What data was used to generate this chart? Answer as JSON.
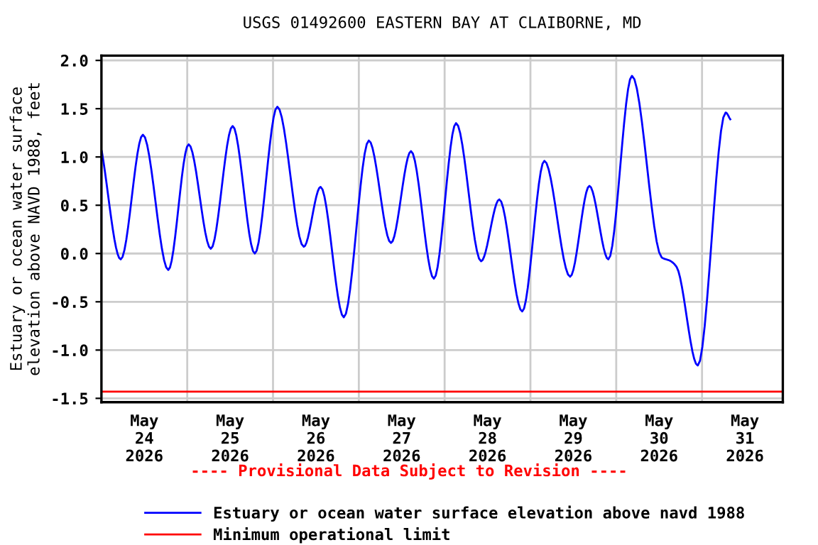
{
  "chart_data": {
    "type": "line",
    "title": "USGS 01492600 EASTERN BAY AT CLAIBORNE, MD",
    "ylabel": "Estuary or ocean water surface\nelevation above NAVD 1988, feet",
    "x": [
      "2026-05-24T00:06",
      "2026-05-24T05:24",
      "2026-05-24T11:36",
      "2026-05-24T18:42",
      "2026-05-25T00:24",
      "2026-05-25T06:36",
      "2026-05-25T12:42",
      "2026-05-25T18:54",
      "2026-05-26T01:12",
      "2026-05-26T08:36",
      "2026-05-26T13:18",
      "2026-05-26T19:48",
      "2026-05-27T02:48",
      "2026-05-27T09:00",
      "2026-05-27T14:36",
      "2026-05-27T21:00",
      "2026-05-28T03:12",
      "2026-05-28T10:12",
      "2026-05-28T15:18",
      "2026-05-28T21:42",
      "2026-05-29T03:54",
      "2026-05-29T11:06",
      "2026-05-29T16:30",
      "2026-05-29T21:48",
      "2026-05-30T04:24",
      "2026-05-30T12:42",
      "2026-05-30T15:18",
      "2026-05-30T16:54",
      "2026-05-30T22:48",
      "2026-05-31T06:36",
      "2026-05-31T07:54"
    ],
    "series": [
      {
        "name": "Estuary or ocean water surface elevation above navd 1988",
        "color": "#0000ff",
        "values": [
          1.06,
          -0.06,
          1.23,
          -0.17,
          1.13,
          0.05,
          1.32,
          0.0,
          1.52,
          0.07,
          0.69,
          -0.66,
          1.17,
          0.11,
          1.06,
          -0.26,
          1.35,
          -0.08,
          0.56,
          -0.6,
          0.96,
          -0.24,
          0.7,
          -0.06,
          1.84,
          -0.04,
          -0.08,
          -0.14,
          -1.16,
          1.46,
          1.39
        ]
      }
    ],
    "ref_lines": [
      {
        "axis": "y",
        "value": -1.43,
        "label": "Minimum operational limit",
        "color": "#ff0000"
      }
    ],
    "annotations": [
      "---- Provisional Data Subject to Revision ----"
    ],
    "xlim": [
      "2026-05-24T00:00",
      "2026-05-31T22:36"
    ],
    "xticks": [
      {
        "value": "2026-05-24T00:00",
        "label": null
      },
      {
        "value": "2026-05-24T12:00",
        "label": "May\n24\n2026"
      },
      {
        "value": "2026-05-25T00:00",
        "label": null
      },
      {
        "value": "2026-05-25T12:00",
        "label": "May\n25\n2026"
      },
      {
        "value": "2026-05-26T00:00",
        "label": null
      },
      {
        "value": "2026-05-26T12:00",
        "label": "May\n26\n2026"
      },
      {
        "value": "2026-05-27T00:00",
        "label": null
      },
      {
        "value": "2026-05-27T12:00",
        "label": "May\n27\n2026"
      },
      {
        "value": "2026-05-28T00:00",
        "label": null
      },
      {
        "value": "2026-05-28T12:00",
        "label": "May\n28\n2026"
      },
      {
        "value": "2026-05-29T00:00",
        "label": null
      },
      {
        "value": "2026-05-29T12:00",
        "label": "May\n29\n2026"
      },
      {
        "value": "2026-05-30T00:00",
        "label": null
      },
      {
        "value": "2026-05-30T12:00",
        "label": "May\n30\n2026"
      },
      {
        "value": "2026-05-31T00:00",
        "label": null
      },
      {
        "value": "2026-05-31T12:00",
        "label": "May\n31\n2026"
      }
    ],
    "ylim": [
      -1.54,
      2.05
    ],
    "yticks": [
      {
        "value": -1.5,
        "label": "-1.5"
      },
      {
        "value": -1.0,
        "label": "-1.0"
      },
      {
        "value": -0.5,
        "label": "-0.5"
      },
      {
        "value": 0,
        "label": "0.0"
      },
      {
        "value": 0.5,
        "label": "0.5"
      },
      {
        "value": 1.0,
        "label": "1.0"
      },
      {
        "value": 1.5,
        "label": "1.5"
      },
      {
        "value": 2.0,
        "label": "2.0"
      }
    ],
    "grid": true,
    "legend": "bottom",
    "marker": "none",
    "line_style": "solid"
  }
}
